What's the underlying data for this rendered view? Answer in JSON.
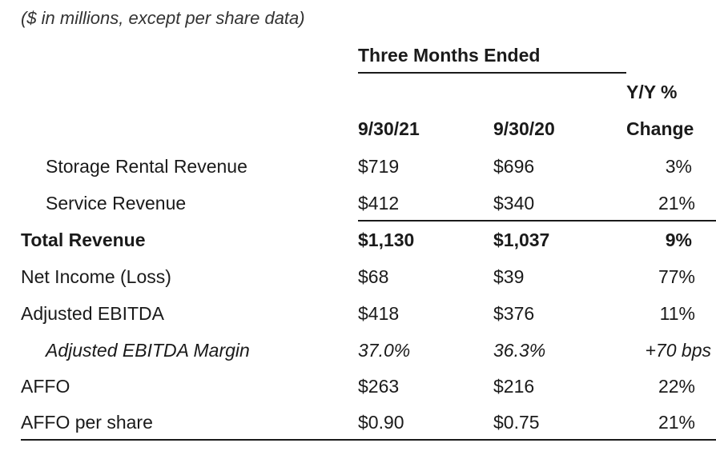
{
  "note": "($ in millions, except per share data)",
  "header": {
    "group": "Three Months Ended",
    "col1": "9/30/21",
    "col2": "9/30/20",
    "col3_line1": "Y/Y %",
    "col3_line2": "Change"
  },
  "rows": [
    {
      "label": "Storage Rental Revenue",
      "c1": "$719",
      "c2": "$696",
      "c3": "3%"
    },
    {
      "label": "Service Revenue",
      "c1": "$412",
      "c2": "$340",
      "c3": "21%"
    },
    {
      "label": "Total Revenue",
      "c1": "$1,130",
      "c2": "$1,037",
      "c3": "9%"
    },
    {
      "label": "Net Income (Loss)",
      "c1": "$68",
      "c2": "$39",
      "c3": "77%"
    },
    {
      "label": "Adjusted EBITDA",
      "c1": "$418",
      "c2": "$376",
      "c3": "11%"
    },
    {
      "label": "Adjusted EBITDA Margin",
      "c1": "37.0%",
      "c2": "36.3%",
      "c3": "+70 bps"
    },
    {
      "label": "AFFO",
      "c1": "$263",
      "c2": "$216",
      "c3": "22%"
    },
    {
      "label": "AFFO per share",
      "c1": "$0.90",
      "c2": "$0.75",
      "c3": "21%"
    }
  ]
}
